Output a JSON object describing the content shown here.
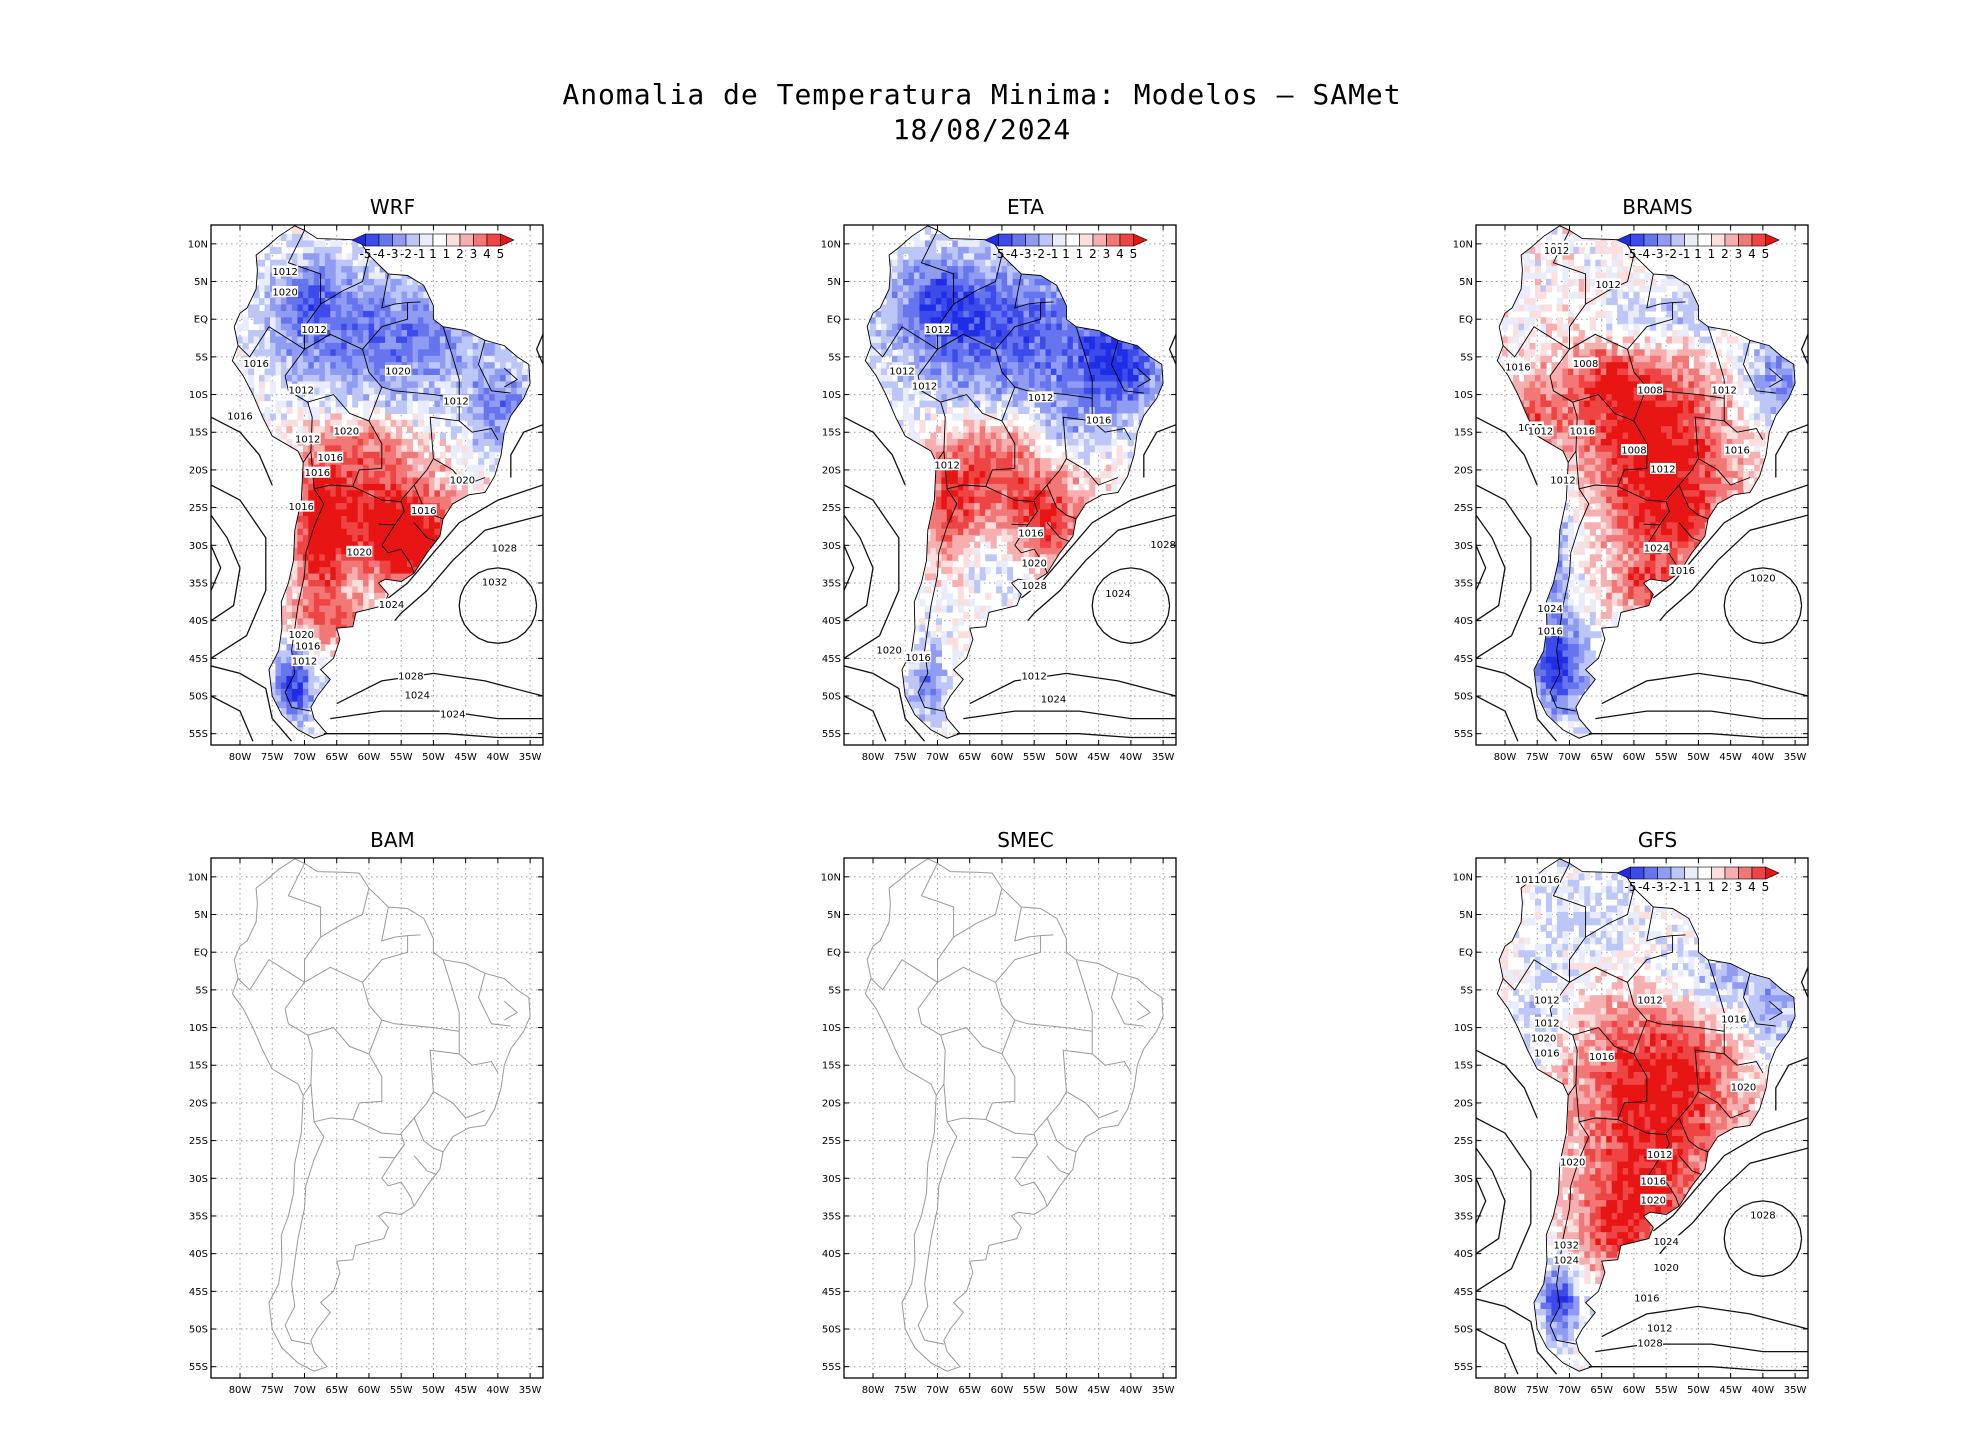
{
  "figure": {
    "title_line1": "Anomalia de Temperatura Minima: Modelos – SAMet",
    "title_line2": "18/08/2024"
  },
  "axes": {
    "lat_labels": [
      "10N",
      "5N",
      "EQ",
      "5S",
      "10S",
      "15S",
      "20S",
      "25S",
      "30S",
      "35S",
      "40S",
      "45S",
      "50S",
      "55S"
    ],
    "lon_labels": [
      "80W",
      "75W",
      "70W",
      "65W",
      "60W",
      "55W",
      "50W",
      "45W",
      "40W",
      "35W"
    ]
  },
  "colorbar": {
    "labels": [
      "-5",
      "-4",
      "-3",
      "-2",
      "-1",
      "1",
      "1",
      "2",
      "3",
      "4",
      "5"
    ],
    "colors": [
      "#1f2ee6",
      "#3c4bea",
      "#6675ee",
      "#8f9cf2",
      "#bcc6f7",
      "#e8ecfb",
      "#ffffff",
      "#fbdede",
      "#f6aeae",
      "#f27878",
      "#ee4444",
      "#e81515"
    ]
  },
  "colors": {
    "red": "#e62020",
    "blue": "#1c2ee0",
    "coast_gray": "#9a9a9a",
    "border_black": "#000000"
  },
  "panels": [
    {
      "id": "wrf",
      "title": "WRF",
      "has_data": true,
      "isobars": [
        "1012",
        "1020",
        "1012",
        "1016",
        "1012",
        "1016",
        "1012",
        "1020",
        "1020",
        "1012",
        "1016",
        "1020",
        "1016",
        "1016",
        "1016",
        "1020",
        "1024",
        "1028",
        "1032",
        "1020",
        "1016",
        "1012",
        "1028",
        "1024",
        "1024"
      ]
    },
    {
      "id": "eta",
      "title": "ETA",
      "has_data": true,
      "isobars": [
        "1012",
        "1012",
        "1012",
        "1012",
        "1016",
        "1012",
        "1016",
        "1020",
        "1028",
        "1024",
        "1028",
        "1020",
        "1016",
        "1012",
        "1024"
      ]
    },
    {
      "id": "brams",
      "title": "BRAMS",
      "has_data": true,
      "isobars": [
        "1008",
        "1012",
        "1012",
        "1016",
        "1008",
        "1008",
        "1012",
        "1012",
        "1012",
        "1016",
        "1008",
        "1012",
        "1016",
        "1012",
        "1024",
        "1016",
        "1020",
        "1024",
        "1016"
      ]
    },
    {
      "id": "bam",
      "title": "BAM",
      "has_data": false,
      "isobars": []
    },
    {
      "id": "smec",
      "title": "SMEC",
      "has_data": false,
      "isobars": []
    },
    {
      "id": "gfs",
      "title": "GFS",
      "has_data": true,
      "isobars": [
        "1016",
        "1016",
        "1012",
        "1012",
        "1012",
        "1020",
        "1016",
        "1016",
        "1016",
        "1020",
        "1012",
        "1020",
        "1016",
        "1020",
        "1024",
        "1028",
        "1032",
        "1024",
        "1020",
        "1016",
        "1012",
        "1028",
        "1028"
      ]
    }
  ],
  "chart_data": {
    "type": "map",
    "title": "Anomalia de Temperatura Minima: Modelos – SAMet",
    "subtitle": "18/08/2024",
    "region": "South America",
    "lon_range": [
      -85,
      -33
    ],
    "lat_range": [
      -56,
      13
    ],
    "variable": "Minimum temperature anomaly (°C) with sea level pressure contours (hPa)",
    "colorbar_range": [
      -5,
      5
    ]
  }
}
